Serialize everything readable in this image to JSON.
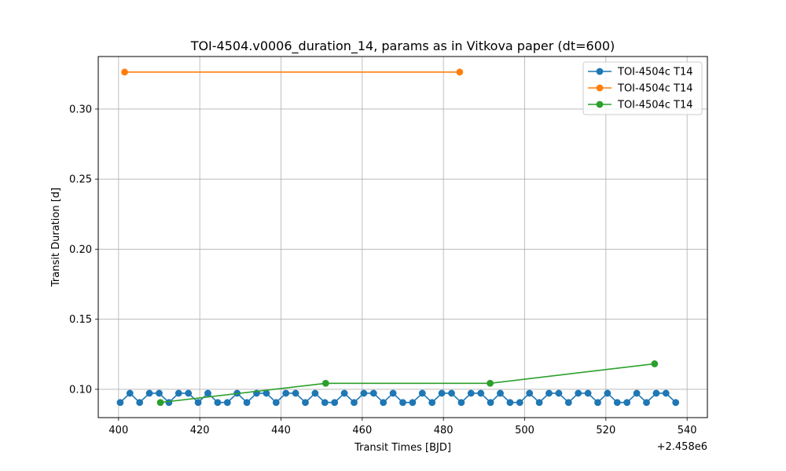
{
  "chart_data": {
    "type": "line",
    "title": "TOI-4504.v0006_duration_14, params as in Vitkova paper (dt=600)",
    "xlabel": "Transit Times [BJD]",
    "ylabel": "Transit Duration [d]",
    "x_offset_label": "+2.458e6",
    "xlim": [
      395,
      545
    ],
    "ylim": [
      0.0798,
      0.3375
    ],
    "xticks": [
      400,
      420,
      440,
      460,
      480,
      500,
      520,
      540
    ],
    "xtick_labels": [
      "400",
      "420",
      "440",
      "460",
      "480",
      "500",
      "520",
      "540"
    ],
    "yticks": [
      0.1,
      0.15,
      0.2,
      0.25,
      0.3
    ],
    "ytick_labels": [
      "0.10",
      "0.15",
      "0.20",
      "0.25",
      "0.30"
    ],
    "grid": true,
    "legend_position": "top-right",
    "series": [
      {
        "name": "TOI-4504c T14",
        "color": "#1f77b4",
        "x": [
          400.4,
          402.8,
          405.2,
          407.6,
          410.0,
          412.4,
          414.8,
          417.2,
          419.6,
          422.0,
          424.4,
          426.8,
          429.2,
          431.6,
          434.0,
          436.4,
          438.8,
          441.2,
          443.6,
          446.0,
          448.4,
          450.8,
          453.2,
          455.6,
          458.0,
          460.4,
          462.8,
          465.2,
          467.6,
          470.0,
          472.4,
          474.8,
          477.2,
          479.6,
          482.0,
          484.4,
          486.8,
          489.2,
          491.6,
          494.0,
          496.4,
          498.8,
          501.2,
          503.6,
          506.0,
          508.4,
          510.8,
          513.2,
          515.6,
          518.0,
          520.4,
          522.8,
          525.2,
          527.6,
          530.0,
          532.4,
          534.8,
          537.2
        ],
        "y": [
          0.0906,
          0.0972,
          0.0906,
          0.0972,
          0.0972,
          0.0906,
          0.0972,
          0.0972,
          0.0906,
          0.0972,
          0.0906,
          0.0906,
          0.0972,
          0.0906,
          0.0972,
          0.0972,
          0.0906,
          0.0972,
          0.0972,
          0.0906,
          0.0972,
          0.0906,
          0.0906,
          0.0972,
          0.0906,
          0.0972,
          0.0972,
          0.0906,
          0.0972,
          0.0906,
          0.0906,
          0.0972,
          0.0906,
          0.0972,
          0.0972,
          0.0906,
          0.0972,
          0.0972,
          0.0906,
          0.0972,
          0.0906,
          0.0906,
          0.0972,
          0.0906,
          0.0972,
          0.0972,
          0.0906,
          0.0972,
          0.0972,
          0.0906,
          0.0972,
          0.0906,
          0.0906,
          0.0972,
          0.0906,
          0.0972,
          0.0972,
          0.0906
        ]
      },
      {
        "name": "TOI-4504c T14",
        "color": "#ff7f0e",
        "x": [
          401.5,
          484.0
        ],
        "y": [
          0.3264,
          0.3264
        ]
      },
      {
        "name": "TOI-4504c T14",
        "color": "#2ca02c",
        "x": [
          410.3,
          451.0,
          491.5,
          532.0
        ],
        "y": [
          0.0906,
          0.1043,
          0.1043,
          0.1182
        ]
      }
    ]
  }
}
